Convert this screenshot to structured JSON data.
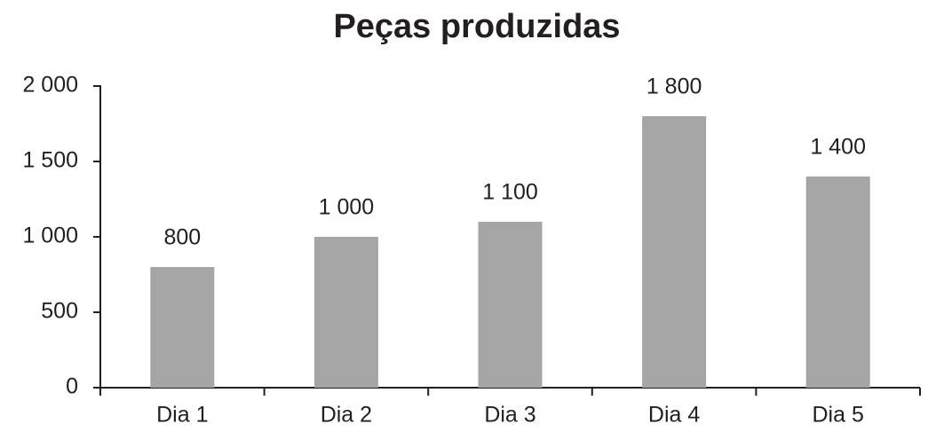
{
  "chart_data": {
    "type": "bar",
    "title": "Peças produzidas",
    "categories": [
      "Dia 1",
      "Dia 2",
      "Dia 3",
      "Dia 4",
      "Dia 5"
    ],
    "values": [
      800,
      1000,
      1100,
      1800,
      1400
    ],
    "value_labels": [
      "800",
      "1 000",
      "1 100",
      "1 800",
      "1 400"
    ],
    "color": "#a6a5a5",
    "ylim": [
      0,
      2000
    ],
    "yticks": [
      0,
      500,
      {
        "value": 1000,
        "label": "1 000"
      },
      {
        "value": 1500,
        "label": "1 500"
      },
      {
        "value": 2000,
        "label": "2 000"
      }
    ]
  }
}
